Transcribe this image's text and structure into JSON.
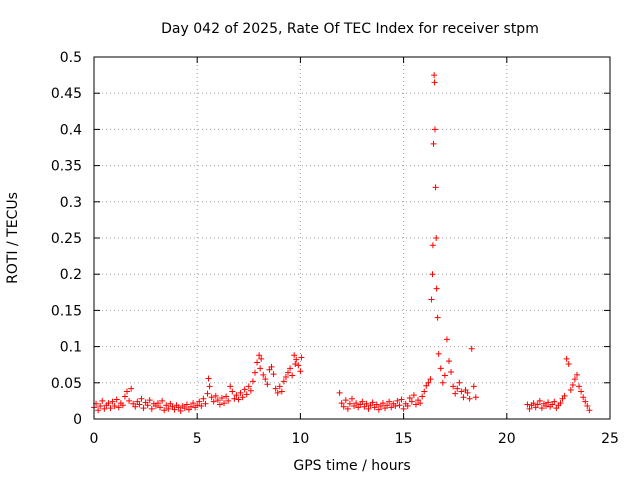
{
  "chart_data": {
    "type": "scatter",
    "title": "Day 042 of 2025, Rate Of TEC Index for receiver stpm",
    "xlabel": "GPS time / hours",
    "ylabel": "ROTI / TECUs",
    "xlim": [
      0,
      25
    ],
    "ylim": [
      0,
      0.5
    ],
    "x_ticks": [
      0,
      5,
      10,
      15,
      20,
      25
    ],
    "x_tick_labels": [
      "0",
      "5",
      "10",
      "15",
      "20",
      "25"
    ],
    "y_ticks": [
      0,
      0.05,
      0.1,
      0.15,
      0.2,
      0.25,
      0.3,
      0.35,
      0.4,
      0.45,
      0.5
    ],
    "y_tick_labels": [
      "0",
      "0.05",
      "0.1",
      "0.15",
      "0.2",
      "0.25",
      "0.3",
      "0.35",
      "0.4",
      "0.45",
      "0.5"
    ],
    "grid": true,
    "marker": "+",
    "color": "#ff0000",
    "series": [
      {
        "name": "ROTI",
        "points": [
          [
            0.0,
            0.016
          ],
          [
            0.1,
            0.021
          ],
          [
            0.2,
            0.012
          ],
          [
            0.3,
            0.018
          ],
          [
            0.4,
            0.025
          ],
          [
            0.5,
            0.014
          ],
          [
            0.6,
            0.019
          ],
          [
            0.7,
            0.022
          ],
          [
            0.8,
            0.015
          ],
          [
            0.9,
            0.024
          ],
          [
            1.0,
            0.018
          ],
          [
            1.1,
            0.027
          ],
          [
            1.2,
            0.016
          ],
          [
            1.3,
            0.022
          ],
          [
            1.4,
            0.019
          ],
          [
            1.5,
            0.031
          ],
          [
            1.6,
            0.038
          ],
          [
            1.7,
            0.025
          ],
          [
            1.8,
            0.042
          ],
          [
            1.9,
            0.021
          ],
          [
            2.0,
            0.017
          ],
          [
            2.1,
            0.024
          ],
          [
            2.2,
            0.02
          ],
          [
            2.3,
            0.028
          ],
          [
            2.4,
            0.015
          ],
          [
            2.5,
            0.023
          ],
          [
            2.6,
            0.019
          ],
          [
            2.7,
            0.026
          ],
          [
            2.8,
            0.014
          ],
          [
            2.9,
            0.021
          ],
          [
            3.0,
            0.018
          ],
          [
            3.1,
            0.022
          ],
          [
            3.2,
            0.016
          ],
          [
            3.3,
            0.025
          ],
          [
            3.4,
            0.012
          ],
          [
            3.5,
            0.019
          ],
          [
            3.6,
            0.014
          ],
          [
            3.7,
            0.021
          ],
          [
            3.8,
            0.017
          ],
          [
            3.9,
            0.013
          ],
          [
            4.0,
            0.019
          ],
          [
            4.1,
            0.016
          ],
          [
            4.2,
            0.011
          ],
          [
            4.3,
            0.018
          ],
          [
            4.4,
            0.015
          ],
          [
            4.5,
            0.02
          ],
          [
            4.6,
            0.013
          ],
          [
            4.7,
            0.017
          ],
          [
            4.8,
            0.022
          ],
          [
            4.9,
            0.016
          ],
          [
            5.0,
            0.019
          ],
          [
            5.1,
            0.024
          ],
          [
            5.2,
            0.018
          ],
          [
            5.3,
            0.028
          ],
          [
            5.4,
            0.021
          ],
          [
            5.5,
            0.035
          ],
          [
            5.55,
            0.056
          ],
          [
            5.6,
            0.045
          ],
          [
            5.7,
            0.03
          ],
          [
            5.8,
            0.024
          ],
          [
            5.9,
            0.032
          ],
          [
            6.0,
            0.026
          ],
          [
            6.1,
            0.02
          ],
          [
            6.2,
            0.029
          ],
          [
            6.3,
            0.022
          ],
          [
            6.4,
            0.031
          ],
          [
            6.5,
            0.025
          ],
          [
            6.6,
            0.045
          ],
          [
            6.7,
            0.038
          ],
          [
            6.8,
            0.028
          ],
          [
            6.9,
            0.033
          ],
          [
            7.0,
            0.027
          ],
          [
            7.1,
            0.036
          ],
          [
            7.2,
            0.03
          ],
          [
            7.3,
            0.041
          ],
          [
            7.4,
            0.034
          ],
          [
            7.5,
            0.045
          ],
          [
            7.6,
            0.039
          ],
          [
            7.7,
            0.052
          ],
          [
            7.8,
            0.064
          ],
          [
            7.9,
            0.078
          ],
          [
            8.0,
            0.088
          ],
          [
            8.05,
            0.07
          ],
          [
            8.1,
            0.083
          ],
          [
            8.2,
            0.061
          ],
          [
            8.3,
            0.055
          ],
          [
            8.4,
            0.048
          ],
          [
            8.5,
            0.068
          ],
          [
            8.6,
            0.072
          ],
          [
            8.7,
            0.062
          ],
          [
            8.8,
            0.042
          ],
          [
            8.9,
            0.036
          ],
          [
            9.0,
            0.045
          ],
          [
            9.1,
            0.038
          ],
          [
            9.2,
            0.052
          ],
          [
            9.3,
            0.058
          ],
          [
            9.4,
            0.064
          ],
          [
            9.5,
            0.07
          ],
          [
            9.6,
            0.06
          ],
          [
            9.7,
            0.088
          ],
          [
            9.75,
            0.076
          ],
          [
            9.8,
            0.082
          ],
          [
            9.9,
            0.074
          ],
          [
            10.0,
            0.066
          ],
          [
            10.05,
            0.085
          ],
          [
            11.9,
            0.036
          ],
          [
            12.0,
            0.022
          ],
          [
            12.1,
            0.017
          ],
          [
            12.2,
            0.026
          ],
          [
            12.3,
            0.014
          ],
          [
            12.4,
            0.021
          ],
          [
            12.5,
            0.028
          ],
          [
            12.6,
            0.018
          ],
          [
            12.7,
            0.022
          ],
          [
            12.8,
            0.016
          ],
          [
            12.9,
            0.02
          ],
          [
            13.0,
            0.024
          ],
          [
            13.1,
            0.017
          ],
          [
            13.2,
            0.021
          ],
          [
            13.3,
            0.014
          ],
          [
            13.4,
            0.019
          ],
          [
            13.5,
            0.023
          ],
          [
            13.6,
            0.016
          ],
          [
            13.7,
            0.02
          ],
          [
            13.8,
            0.013
          ],
          [
            13.9,
            0.018
          ],
          [
            14.0,
            0.022
          ],
          [
            14.1,
            0.015
          ],
          [
            14.2,
            0.019
          ],
          [
            14.3,
            0.024
          ],
          [
            14.4,
            0.016
          ],
          [
            14.5,
            0.021
          ],
          [
            14.6,
            0.018
          ],
          [
            14.7,
            0.025
          ],
          [
            14.8,
            0.019
          ],
          [
            14.9,
            0.027
          ],
          [
            15.0,
            0.014
          ],
          [
            15.1,
            0.021
          ],
          [
            15.2,
            0.018
          ],
          [
            15.3,
            0.029
          ],
          [
            15.4,
            0.024
          ],
          [
            15.5,
            0.033
          ],
          [
            15.6,
            0.02
          ],
          [
            15.7,
            0.026
          ],
          [
            15.8,
            0.022
          ],
          [
            15.9,
            0.031
          ],
          [
            16.0,
            0.038
          ],
          [
            16.1,
            0.046
          ],
          [
            16.2,
            0.05
          ],
          [
            16.3,
            0.055
          ],
          [
            16.35,
            0.165
          ],
          [
            16.4,
            0.2
          ],
          [
            16.42,
            0.24
          ],
          [
            16.45,
            0.38
          ],
          [
            16.48,
            0.475
          ],
          [
            16.5,
            0.465
          ],
          [
            16.52,
            0.4
          ],
          [
            16.55,
            0.32
          ],
          [
            16.58,
            0.25
          ],
          [
            16.6,
            0.18
          ],
          [
            16.65,
            0.14
          ],
          [
            16.7,
            0.09
          ],
          [
            16.8,
            0.07
          ],
          [
            16.9,
            0.05
          ],
          [
            17.0,
            0.06
          ],
          [
            17.1,
            0.11
          ],
          [
            17.2,
            0.08
          ],
          [
            17.3,
            0.065
          ],
          [
            17.4,
            0.045
          ],
          [
            17.5,
            0.035
          ],
          [
            17.6,
            0.042
          ],
          [
            17.7,
            0.05
          ],
          [
            17.8,
            0.038
          ],
          [
            17.9,
            0.03
          ],
          [
            18.0,
            0.04
          ],
          [
            18.1,
            0.036
          ],
          [
            18.2,
            0.028
          ],
          [
            18.3,
            0.097
          ],
          [
            18.4,
            0.045
          ],
          [
            18.5,
            0.03
          ],
          [
            21.0,
            0.02
          ],
          [
            21.1,
            0.014
          ],
          [
            21.2,
            0.019
          ],
          [
            21.3,
            0.022
          ],
          [
            21.4,
            0.016
          ],
          [
            21.5,
            0.02
          ],
          [
            21.6,
            0.025
          ],
          [
            21.7,
            0.015
          ],
          [
            21.8,
            0.021
          ],
          [
            21.9,
            0.018
          ],
          [
            22.0,
            0.023
          ],
          [
            22.1,
            0.017
          ],
          [
            22.2,
            0.02
          ],
          [
            22.3,
            0.024
          ],
          [
            22.4,
            0.015
          ],
          [
            22.5,
            0.019
          ],
          [
            22.6,
            0.022
          ],
          [
            22.7,
            0.028
          ],
          [
            22.8,
            0.032
          ],
          [
            22.9,
            0.083
          ],
          [
            23.0,
            0.076
          ],
          [
            23.1,
            0.04
          ],
          [
            23.2,
            0.047
          ],
          [
            23.3,
            0.055
          ],
          [
            23.4,
            0.061
          ],
          [
            23.5,
            0.045
          ],
          [
            23.6,
            0.038
          ],
          [
            23.7,
            0.03
          ],
          [
            23.8,
            0.024
          ],
          [
            23.9,
            0.018
          ],
          [
            24.0,
            0.012
          ]
        ]
      }
    ]
  }
}
